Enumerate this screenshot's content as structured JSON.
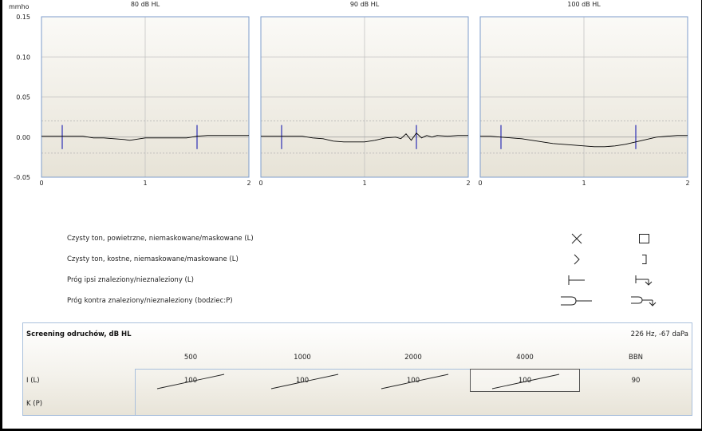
{
  "chart_data": [
    {
      "type": "line",
      "title": "80 dB HL",
      "ylabel": "mmho",
      "xlim": [
        0,
        2
      ],
      "ylim": [
        -0.05,
        0.15
      ],
      "x_ticks": [
        "0",
        "1",
        "2"
      ],
      "y_ticks": [
        "0.15",
        "0.10",
        "0.05",
        "0.00",
        "-0.05"
      ],
      "grid": true,
      "markers_x": [
        0.2,
        1.5
      ],
      "series": [
        {
          "x": [
            0,
            0.1,
            0.2,
            0.3,
            0.4,
            0.5,
            0.6,
            0.7,
            0.8,
            0.85,
            0.9,
            1.0,
            1.1,
            1.2,
            1.3,
            1.4,
            1.5,
            1.6,
            1.7,
            1.8,
            1.9,
            2.0
          ],
          "y": [
            0.001,
            0.001,
            0.001,
            0.001,
            0.001,
            -0.001,
            -0.001,
            -0.002,
            -0.003,
            -0.004,
            -0.003,
            -0.001,
            -0.001,
            -0.001,
            -0.001,
            -0.001,
            0.001,
            0.002,
            0.002,
            0.002,
            0.002,
            0.002
          ]
        }
      ]
    },
    {
      "type": "line",
      "title": "90 dB HL",
      "xlim": [
        0,
        2
      ],
      "ylim": [
        -0.05,
        0.15
      ],
      "x_ticks": [
        "0",
        "1",
        "2"
      ],
      "y_ticks": [
        "0.15",
        "0.10",
        "0.05",
        "0.00",
        "-0.05"
      ],
      "grid": true,
      "markers_x": [
        0.2,
        1.5
      ],
      "series": [
        {
          "x": [
            0,
            0.1,
            0.2,
            0.3,
            0.4,
            0.5,
            0.6,
            0.7,
            0.8,
            0.9,
            1.0,
            1.1,
            1.2,
            1.3,
            1.35,
            1.4,
            1.45,
            1.5,
            1.55,
            1.6,
            1.65,
            1.7,
            1.8,
            1.9,
            2.0
          ],
          "y": [
            0.001,
            0.001,
            0.001,
            0.001,
            0.001,
            -0.001,
            -0.002,
            -0.005,
            -0.006,
            -0.006,
            -0.006,
            -0.004,
            -0.001,
            0.0,
            -0.002,
            0.004,
            -0.004,
            0.005,
            -0.001,
            0.002,
            0.0,
            0.002,
            0.001,
            0.002,
            0.002
          ]
        }
      ]
    },
    {
      "type": "line",
      "title": "100 dB HL",
      "xlim": [
        0,
        2
      ],
      "ylim": [
        -0.05,
        0.15
      ],
      "x_ticks": [
        "0",
        "1",
        "2"
      ],
      "y_ticks": [
        "0.15",
        "0.10",
        "0.05",
        "0.00",
        "-0.05"
      ],
      "grid": true,
      "markers_x": [
        0.2,
        1.5
      ],
      "series": [
        {
          "x": [
            0,
            0.1,
            0.2,
            0.3,
            0.4,
            0.5,
            0.6,
            0.7,
            0.8,
            0.9,
            1.0,
            1.1,
            1.2,
            1.3,
            1.4,
            1.5,
            1.6,
            1.7,
            1.8,
            1.9,
            2.0
          ],
          "y": [
            0.001,
            0.001,
            0.0,
            -0.001,
            -0.002,
            -0.004,
            -0.006,
            -0.008,
            -0.009,
            -0.01,
            -0.011,
            -0.012,
            -0.012,
            -0.011,
            -0.009,
            -0.006,
            -0.003,
            0.0,
            0.001,
            0.002,
            0.002
          ]
        }
      ]
    }
  ],
  "style": {
    "plot_bg_top": "#fbfaf7",
    "plot_bg_bottom": "#e7e3d7",
    "plot_border": "#7e9ccb",
    "marker_color": "#2d2fb5",
    "line_color": "#000000"
  },
  "legend": {
    "rows": [
      {
        "label": "Czysty ton, powietrzne, niemaskowane/maskowane (L)",
        "sym_a": "cross-icon",
        "sym_b": "square-icon"
      },
      {
        "label": "Czysty ton, kostne, niemaskowane/maskowane (L)",
        "sym_a": "angle-right-icon",
        "sym_b": "bracket-right-icon"
      },
      {
        "label": "Próg ipsi znaleziony/nieznaleziony (L)",
        "sym_a": "ipsi-found-icon",
        "sym_b": "ipsi-notfound-icon"
      },
      {
        "label": "Próg kontra znaleziony/nieznaleziony (bodziec:P)",
        "sym_a": "contra-found-icon",
        "sym_b": "contra-notfound-icon"
      }
    ]
  },
  "reflex": {
    "title": "Screening odruchów, dB HL",
    "condition": "226 Hz, -67 daPa",
    "frequencies": [
      "500",
      "1000",
      "2000",
      "4000",
      "BBN"
    ],
    "rows": [
      {
        "label": "I (L)",
        "values": [
          "100",
          "100",
          "100",
          "100",
          "90"
        ],
        "slashed": [
          true,
          true,
          true,
          true,
          false
        ]
      },
      {
        "label": "K (P)",
        "values": [
          "",
          "",
          "",
          "",
          ""
        ],
        "slashed": [
          false,
          false,
          false,
          false,
          false
        ]
      }
    ],
    "selected": {
      "row": 0,
      "col": 3
    }
  }
}
